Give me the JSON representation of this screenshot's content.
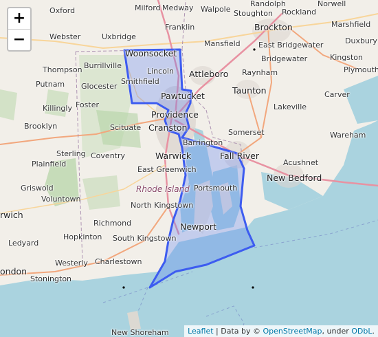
{
  "zoom": {
    "in_label": "+",
    "out_label": "−"
  },
  "places": [
    "Oxford",
    "Milford",
    "Medway",
    "Walpole",
    "Stoughton",
    "Randolph",
    "Rockland",
    "Norwell",
    "Brockton",
    "Marshfield",
    "Webster",
    "Uxbridge",
    "Franklin",
    "Woonsocket",
    "Mansfield",
    "East Bridgewater",
    "Duxbury",
    "Kingston",
    "Burrillville",
    "Bridgewater",
    "Thompson",
    "Lincoln",
    "Plymouth",
    "Raynham",
    "Attleboro",
    "Smithfield",
    "Putnam",
    "Glocester",
    "Taunton",
    "Pawtucket",
    "Carver",
    "Killingly",
    "Foster",
    "Providence",
    "Lakeville",
    "Cranston",
    "Scituate",
    "Brooklyn",
    "Somerset",
    "Wareham",
    "Barrington",
    "Fall River",
    "Sterling",
    "Coventry",
    "Warwick",
    "Acushnet",
    "Plainfield",
    "East Greenwich",
    "New Bedford",
    "Griswold",
    "Portsmouth",
    "Voluntown",
    "North Kingstown",
    "Richmond",
    "Newport",
    "Ledyard",
    "Hopkinton",
    "South Kingstown",
    "Westerly",
    "Charlestown",
    "Stonington",
    "New Shoreham",
    "rwich",
    "ondon"
  ],
  "region_label": "Rhode Island",
  "attribution": {
    "leaflet": "Leaflet",
    "sep": " | Data by © ",
    "osm": "OpenStreetMap",
    "under": ", under ",
    "odbl": "ODbL",
    "end": "."
  },
  "colors": {
    "land": "#f2efe9",
    "water": "#aad3df",
    "forest": "#add19e",
    "highlight_fill": "#5b7ff5",
    "highlight_stroke": "#3d5cf0",
    "road_major": "#f2a77d",
    "road_minor": "#f8d59a"
  },
  "icons": {
    "zoom_in": "plus-icon",
    "zoom_out": "minus-icon"
  }
}
